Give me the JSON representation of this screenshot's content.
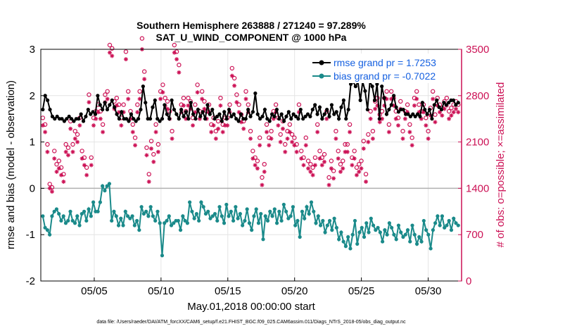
{
  "colors": {
    "rmse": "#000000",
    "bias": "#1a8a8a",
    "obs": "#cc1155",
    "legend_text": "#1560e0",
    "zero_line": "#b0b0b0",
    "grid": "#e4e4e4"
  },
  "chart_data": {
    "type": "line",
    "title": "Southern Hemisphere 263888 / 271240 = 97.289%",
    "subtitle": "SAT_U_WIND_COMPONENT @ 1000 hPa",
    "xlabel": "May.01,2018 00:00:00 start",
    "ylabel_left": "rmse and bias (model - observation)",
    "ylabel_right": "# of obs: o=possible; ×=assimilated",
    "footer": "data file: /Users/raeder/DAI/ATM_forcXX/CAM6_setup/f.e21.FHIST_BGC.f09_025.CAM6assim.011/Diags_NTrS_2018-05/obs_diag_output.nc",
    "xlim": [
      1,
      32.5
    ],
    "ylim_left": [
      -2,
      3
    ],
    "ylim_right": [
      0,
      3500
    ],
    "x_ticks": [
      5,
      10,
      15,
      20,
      25,
      30
    ],
    "x_tick_labels": [
      "05/05",
      "05/10",
      "05/15",
      "05/20",
      "05/25",
      "05/30"
    ],
    "y_left_ticks": [
      "-2",
      "-1",
      "0",
      "1",
      "2",
      "3"
    ],
    "y_right_ticks": [
      "0",
      "700",
      "1400",
      "2100",
      "2800",
      "3500"
    ],
    "legend_position": "top-right",
    "legend": {
      "rmse": "rmse grand pr = 1.7253",
      "bias": "bias grand pr = -0.7022"
    },
    "series": [
      {
        "name": "rmse",
        "values": [
          1.7,
          2.0,
          1.9,
          1.7,
          1.55,
          1.5,
          1.55,
          1.5,
          1.5,
          1.45,
          1.5,
          1.55,
          1.5,
          1.45,
          1.5,
          1.5,
          1.6,
          1.45,
          1.55,
          1.7,
          1.6,
          1.65,
          1.6,
          2.0,
          1.8,
          1.7,
          1.85,
          1.7,
          1.8,
          1.9,
          1.75,
          1.6,
          1.5,
          1.65,
          1.5,
          1.5,
          1.45,
          1.6,
          1.5,
          1.45,
          1.5,
          1.7,
          2.2,
          1.85,
          1.5,
          1.5,
          1.75,
          1.9,
          1.5,
          1.45,
          1.5,
          1.8,
          1.6,
          1.5,
          1.9,
          1.7,
          1.6,
          1.5,
          1.7,
          1.55,
          1.65,
          1.5,
          1.85,
          1.6,
          1.5,
          1.7,
          1.55,
          1.65,
          1.5,
          1.8,
          1.6,
          1.7,
          1.5,
          1.55,
          1.6,
          1.45,
          1.65,
          1.5,
          1.7,
          1.55,
          1.6,
          1.5,
          1.45,
          1.6,
          1.5,
          1.5,
          1.7,
          1.55,
          1.65,
          2.05,
          1.6,
          1.5,
          1.55,
          1.7,
          1.5,
          1.45,
          1.6,
          1.55,
          1.7,
          1.5,
          1.6,
          1.45,
          1.55,
          1.65,
          1.5,
          1.6,
          1.55,
          1.5,
          1.7,
          1.5,
          1.55,
          1.6,
          1.55,
          1.7,
          1.8,
          1.6,
          1.75,
          1.5,
          1.6,
          1.7,
          1.55,
          1.8,
          1.6,
          1.65,
          1.5,
          1.75,
          1.9,
          1.5,
          1.7,
          2.25,
          2.3,
          2.2,
          2.3,
          1.9,
          2.3,
          2.1,
          1.7,
          2.3,
          2.2,
          1.9,
          2.25,
          1.5,
          2.2,
          1.95,
          1.6,
          1.7,
          1.8,
          2.0,
          1.75,
          1.65,
          1.7,
          1.7,
          1.6,
          1.6,
          1.55,
          1.6,
          1.55,
          1.6,
          1.55,
          1.85,
          1.7,
          1.6,
          1.7,
          1.5,
          1.8,
          1.9,
          1.75,
          1.7,
          1.85,
          1.8,
          1.85,
          1.9,
          1.9,
          1.8,
          1.85
        ]
      },
      {
        "name": "bias",
        "values": [
          -0.6,
          -0.85,
          -0.9,
          -1.0,
          -0.6,
          -0.5,
          -0.45,
          -0.55,
          -0.7,
          -0.6,
          -0.75,
          -0.7,
          -0.5,
          -0.7,
          -0.75,
          -0.6,
          -0.8,
          -0.55,
          -0.5,
          -0.7,
          -0.45,
          -0.6,
          -0.3,
          -0.5,
          -0.5,
          -0.3,
          0.05,
          -0.05,
          0.05,
          0.1,
          -0.7,
          -0.5,
          -0.6,
          -0.8,
          -0.65,
          -0.8,
          -0.5,
          -0.6,
          -0.65,
          -0.6,
          -0.8,
          -0.7,
          -0.9,
          -0.4,
          -0.55,
          -0.5,
          -0.6,
          -0.4,
          -0.6,
          -0.7,
          -0.5,
          -0.75,
          -1.45,
          -0.75,
          -0.7,
          -0.6,
          -0.8,
          -0.75,
          -0.7,
          -0.7,
          -0.9,
          -0.6,
          -0.7,
          -0.75,
          -0.3,
          -0.5,
          -0.65,
          -0.55,
          -0.7,
          -0.3,
          -0.4,
          -0.55,
          -0.5,
          -0.65,
          -0.6,
          -0.55,
          -0.7,
          -0.4,
          -0.6,
          -0.75,
          -0.35,
          -0.6,
          -0.5,
          -0.7,
          -0.4,
          -0.65,
          -0.55,
          -0.8,
          -0.7,
          -0.45,
          -0.75,
          -0.9,
          -0.6,
          -0.45,
          -0.75,
          -0.55,
          -1.1,
          -0.6,
          -0.7,
          -0.5,
          -0.6,
          -0.45,
          -0.75,
          -0.5,
          -0.7,
          -0.35,
          -0.5,
          -0.65,
          -0.6,
          -0.4,
          -0.8,
          -0.7,
          -1.05,
          -0.5,
          -0.65,
          -0.4,
          -0.55,
          -0.3,
          -0.5,
          -0.75,
          -0.6,
          -0.8,
          -0.7,
          -0.95,
          -0.8,
          -0.7,
          -0.9,
          -0.65,
          -0.85,
          -1.1,
          -0.95,
          -1.15,
          -1.25,
          -1.05,
          -1.3,
          -1.0,
          -0.7,
          -1.2,
          -0.95,
          -0.85,
          -1.05,
          -0.75,
          -0.95,
          -0.65,
          -0.8,
          -0.9,
          -0.85,
          -0.95,
          -1.15,
          -0.9,
          -1.0,
          -0.75,
          -0.85,
          -1.0,
          -1.1,
          -0.8,
          -0.95,
          -1.05,
          -1.0,
          -0.9,
          -1.15,
          -0.8,
          -1.0,
          -1.2,
          -1.05,
          -1.15,
          -0.7,
          -0.9,
          -1.0,
          -1.3,
          -0.9,
          -0.75,
          -0.6,
          -0.8,
          -0.6,
          -0.85,
          -0.8,
          -0.7,
          -0.9,
          -0.65,
          -0.75,
          -0.8
        ]
      },
      {
        "name": "obs_possible",
        "values": [
          2400,
          2300,
          2000,
          1400,
          1350,
          1900,
          1700,
          1750,
          1650,
          1550,
          2000,
          1950,
          2350,
          2000,
          2200,
          2150,
          2400,
          1900,
          1800,
          1650,
          2750,
          1800,
          2400,
          2500,
          2600,
          2500,
          2300,
          2750,
          2800,
          3500,
          3450,
          2650,
          2700,
          2600,
          2400,
          2600,
          3400,
          2800,
          2500,
          2300,
          2100,
          2600,
          2800,
          3600,
          3100,
          1950,
          1550,
          2050,
          1850,
          2300,
          2000,
          2800,
          2900,
          2700,
          2650,
          2500,
          2200,
          3500,
          3400,
          3200,
          2600,
          2700,
          2500,
          2700,
          2650,
          2400,
          2600,
          2900,
          2500,
          2800,
          2650,
          2500,
          2600,
          2300,
          2400,
          2200,
          2350,
          2700,
          2300,
          2400,
          2400,
          2600,
          3150,
          3000,
          2750,
          2600,
          2450,
          2350,
          2800,
          2600,
          2200,
          1900,
          1800,
          1750,
          2100,
          1500,
          1700,
          2300,
          2100,
          2200,
          2500,
          2600,
          2400,
          2150,
          2350,
          2000,
          2200,
          2300,
          2150,
          2100,
          2000,
          2600,
          1900,
          1800,
          2100,
          1750,
          1700,
          1650,
          1800,
          2300,
          1900,
          1800,
          1850,
          2500,
          1500,
          1750,
          1600,
          2200,
          1900,
          1700,
          1750,
          2000,
          2000,
          2300,
          1800,
          1900,
          1650,
          1700,
          1750,
          2050,
          1550,
          2150,
          2500,
          2200,
          2650,
          2700,
          2450,
          2500,
          2700,
          2800,
          2300,
          2800,
          2700,
          2500,
          2400,
          2650,
          2200,
          2500,
          2600,
          2300,
          2100,
          2700,
          2800,
          2600,
          2500,
          2600,
          2400,
          2200,
          2550,
          2800,
          2450,
          2700,
          2600,
          2550,
          2650,
          2700,
          2500,
          2550,
          2600,
          2650,
          2600
        ]
      },
      {
        "name": "obs_assimilated",
        "values": [
          2350,
          2250,
          1950,
          1400,
          1350,
          1850,
          1650,
          1700,
          1600,
          1500,
          1950,
          1900,
          2300,
          1950,
          2150,
          2100,
          2350,
          1850,
          1750,
          1600,
          2700,
          1750,
          2350,
          2450,
          2550,
          2450,
          2250,
          2700,
          2750,
          3450,
          3400,
          2600,
          2650,
          2550,
          2350,
          2550,
          3350,
          2750,
          2450,
          2250,
          2050,
          2550,
          2750,
          3500,
          3050,
          1900,
          1500,
          2000,
          1800,
          2250,
          1950,
          2750,
          2850,
          2650,
          2600,
          2450,
          2150,
          3450,
          3350,
          3150,
          2550,
          2650,
          2450,
          2650,
          2600,
          2350,
          2550,
          2850,
          2450,
          2750,
          2600,
          2450,
          2550,
          2250,
          2350,
          2150,
          2300,
          2650,
          2250,
          2350,
          2350,
          2550,
          3100,
          2950,
          2700,
          2550,
          2400,
          2300,
          2750,
          2550,
          2150,
          1850,
          1750,
          1700,
          2050,
          1450,
          1650,
          2250,
          2050,
          2150,
          2450,
          2550,
          2350,
          2100,
          2300,
          1950,
          2150,
          2250,
          2100,
          2050,
          1950,
          2550,
          1850,
          1750,
          2050,
          1700,
          1650,
          1600,
          1750,
          2250,
          1850,
          1750,
          1800,
          2450,
          1450,
          1700,
          1550,
          2150,
          1850,
          1650,
          1700,
          1950,
          1950,
          2250,
          1750,
          1850,
          1600,
          1650,
          1700,
          2000,
          1500,
          2100,
          2450,
          2150,
          2600,
          2650,
          2400,
          2450,
          2650,
          2750,
          2250,
          2750,
          2650,
          2450,
          2350,
          2600,
          2150,
          2450,
          2550,
          2250,
          2050,
          2650,
          2750,
          2550,
          2450,
          2550,
          2350,
          2150,
          2500,
          2750,
          2400,
          2650,
          2550,
          2500,
          2600,
          2650,
          2450,
          2500,
          2550,
          2600,
          2550
        ]
      }
    ]
  }
}
